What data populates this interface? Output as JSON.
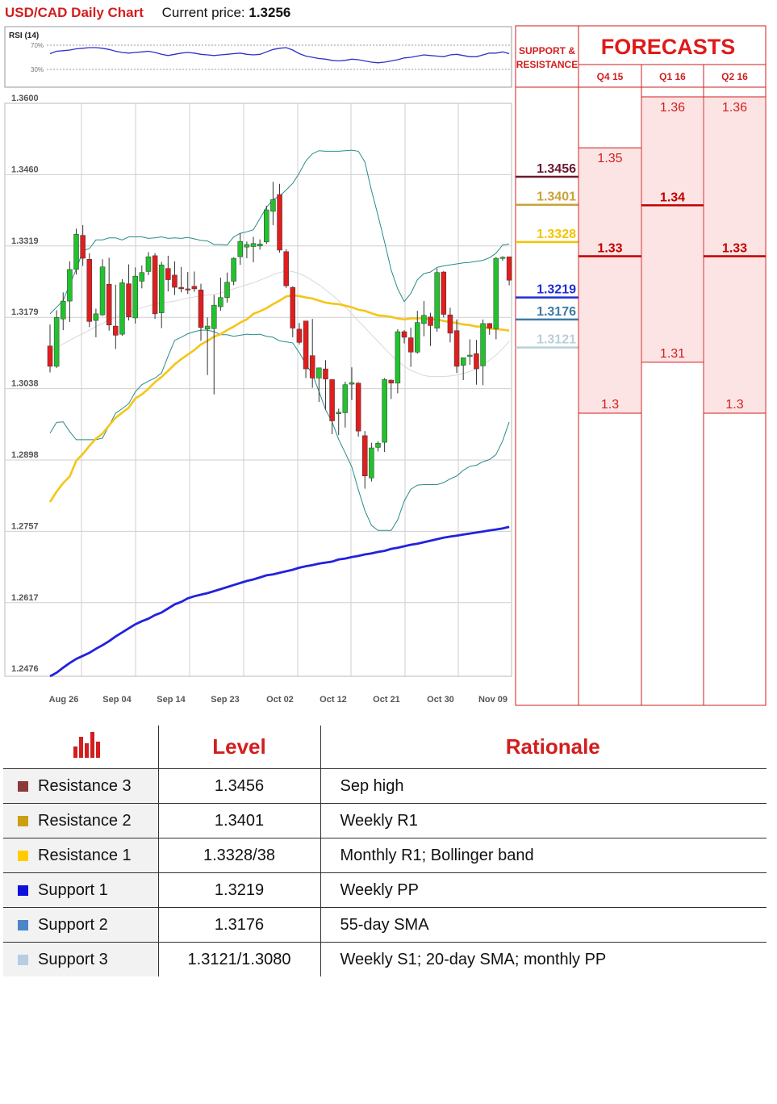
{
  "header": {
    "title": "USD/CAD Daily Chart",
    "price_label": "Current price:",
    "price_value": "1.3256"
  },
  "chart_data": {
    "type": "candlestick",
    "ylim": [
      1.2476,
      1.36
    ],
    "y_ticks": [
      "1.3600",
      "1.3460",
      "1.3319",
      "1.3179",
      "1.3038",
      "1.2898",
      "1.2757",
      "1.2617",
      "1.2476"
    ],
    "x_ticks": [
      "Aug 26",
      "Sep 04",
      "Sep 14",
      "Sep 23",
      "Oct 02",
      "Oct 12",
      "Oct 21",
      "Oct 30",
      "Nov 09"
    ],
    "grid": true,
    "colors": {
      "up": "#22c22e",
      "down": "#e01e1e",
      "sma55": "#f5c518",
      "sma200": "#2222dd",
      "bollinger": "#2a8a8a",
      "sma20": "#d8d8d8"
    },
    "candles": [
      [
        1.3124,
        1.3166,
        1.3072,
        1.3084
      ],
      [
        1.3084,
        1.3194,
        1.3081,
        1.318
      ],
      [
        1.3177,
        1.3229,
        1.3155,
        1.3212
      ],
      [
        1.3212,
        1.329,
        1.3171,
        1.3274
      ],
      [
        1.3274,
        1.3354,
        1.3264,
        1.3343
      ],
      [
        1.3341,
        1.3361,
        1.3281,
        1.3296
      ],
      [
        1.3294,
        1.3306,
        1.3161,
        1.3172
      ],
      [
        1.3174,
        1.3197,
        1.3141,
        1.3187
      ],
      [
        1.3185,
        1.3294,
        1.3183,
        1.3279
      ],
      [
        1.3245,
        1.3297,
        1.3154,
        1.3165
      ],
      [
        1.3163,
        1.3244,
        1.3118,
        1.3145
      ],
      [
        1.3147,
        1.3255,
        1.3144,
        1.3248
      ],
      [
        1.3246,
        1.3284,
        1.3174,
        1.3181
      ],
      [
        1.3179,
        1.3278,
        1.3168,
        1.3261
      ],
      [
        1.3251,
        1.3282,
        1.3237,
        1.3268
      ],
      [
        1.327,
        1.3308,
        1.3263,
        1.3299
      ],
      [
        1.3301,
        1.3306,
        1.3177,
        1.3187
      ],
      [
        1.3189,
        1.3289,
        1.3159,
        1.3283
      ],
      [
        1.3276,
        1.3301,
        1.3231,
        1.3254
      ],
      [
        1.3263,
        1.329,
        1.3224,
        1.3239
      ],
      [
        1.3239,
        1.3279,
        1.3229,
        1.3236
      ],
      [
        1.3236,
        1.3269,
        1.3226,
        1.3234
      ],
      [
        1.3241,
        1.327,
        1.323,
        1.3236
      ],
      [
        1.3234,
        1.3246,
        1.3134,
        1.316
      ],
      [
        1.3157,
        1.318,
        1.3067,
        1.3163
      ],
      [
        1.3158,
        1.3224,
        1.3029,
        1.3204
      ],
      [
        1.3201,
        1.3258,
        1.3193,
        1.3219
      ],
      [
        1.3219,
        1.3268,
        1.3209,
        1.3249
      ],
      [
        1.3251,
        1.3298,
        1.3243,
        1.3296
      ],
      [
        1.3299,
        1.3345,
        1.3283,
        1.3329
      ],
      [
        1.3318,
        1.3329,
        1.3296,
        1.3323
      ],
      [
        1.3319,
        1.3338,
        1.3288,
        1.3325
      ],
      [
        1.332,
        1.3333,
        1.3313,
        1.3324
      ],
      [
        1.3328,
        1.3399,
        1.3324,
        1.3391
      ],
      [
        1.3388,
        1.3446,
        1.3361,
        1.3411
      ],
      [
        1.3421,
        1.3442,
        1.3307,
        1.3312
      ],
      [
        1.3309,
        1.3314,
        1.3238,
        1.3242
      ],
      [
        1.3239,
        1.3241,
        1.3141,
        1.3159
      ],
      [
        1.3157,
        1.3169,
        1.3127,
        1.3131
      ],
      [
        1.3173,
        1.3173,
        1.3061,
        1.3079
      ],
      [
        1.3105,
        1.3177,
        1.3042,
        1.3061
      ],
      [
        1.3061,
        1.3076,
        1.3014,
        1.3081
      ],
      [
        1.3079,
        1.3096,
        1.2999,
        1.3059
      ],
      [
        1.3058,
        1.3059,
        1.2951,
        1.2977
      ],
      [
        1.2991,
        1.3001,
        1.2949,
        1.2994
      ],
      [
        1.2993,
        1.3054,
        1.2964,
        1.3048
      ],
      [
        1.3049,
        1.3082,
        1.3018,
        1.3052
      ],
      [
        1.3051,
        1.3053,
        1.2946,
        1.2957
      ],
      [
        1.2948,
        1.2957,
        1.2844,
        1.2869
      ],
      [
        1.2865,
        1.2934,
        1.2858,
        1.2924
      ],
      [
        1.2925,
        1.2937,
        1.2917,
        1.2933
      ],
      [
        1.2935,
        1.3061,
        1.2916,
        1.3058
      ],
      [
        1.3057,
        1.3058,
        1.302,
        1.3051
      ],
      [
        1.3051,
        1.3157,
        1.3031,
        1.3152
      ],
      [
        1.3152,
        1.3155,
        1.3129,
        1.3141
      ],
      [
        1.314,
        1.316,
        1.3083,
        1.3112
      ],
      [
        1.3112,
        1.3193,
        1.3109,
        1.317
      ],
      [
        1.3168,
        1.3212,
        1.3143,
        1.3184
      ],
      [
        1.3181,
        1.3189,
        1.3124,
        1.3164
      ],
      [
        1.3159,
        1.3276,
        1.3152,
        1.3268
      ],
      [
        1.3269,
        1.3271,
        1.318,
        1.3186
      ],
      [
        1.3185,
        1.3199,
        1.3131,
        1.3149
      ],
      [
        1.3154,
        1.3176,
        1.3071,
        1.3084
      ],
      [
        1.3086,
        1.3099,
        1.3057,
        1.3101
      ],
      [
        1.3105,
        1.3137,
        1.3087,
        1.3106
      ],
      [
        1.3109,
        1.3136,
        1.3048,
        1.3079
      ],
      [
        1.3085,
        1.3176,
        1.3047,
        1.3168
      ],
      [
        1.3168,
        1.3169,
        1.3146,
        1.3159
      ],
      [
        1.3158,
        1.3298,
        1.3137,
        1.3296
      ],
      [
        1.3296,
        1.33,
        1.3291,
        1.3298
      ],
      [
        1.3299,
        1.3295,
        1.3243,
        1.3253
      ]
    ],
    "sma55": [
      1.2818,
      1.2838,
      1.2855,
      1.2868,
      1.2899,
      1.2912,
      1.2928,
      1.2942,
      1.2952,
      1.2968,
      1.2983,
      1.2993,
      1.3003,
      1.3021,
      1.3029,
      1.304,
      1.3053,
      1.3063,
      1.3075,
      1.3088,
      1.3098,
      1.3107,
      1.3116,
      1.3127,
      1.3134,
      1.3142,
      1.3147,
      1.3155,
      1.3162,
      1.317,
      1.3176,
      1.3187,
      1.3192,
      1.3198,
      1.3206,
      1.3213,
      1.3221,
      1.3223,
      1.3222,
      1.3219,
      1.3217,
      1.3213,
      1.3209,
      1.3207,
      1.3206,
      1.3203,
      1.32,
      1.3195,
      1.3193,
      1.3188,
      1.3184,
      1.3183,
      1.3181,
      1.3178,
      1.3176,
      1.3178,
      1.3178,
      1.3178,
      1.3176,
      1.3176,
      1.3173,
      1.3171,
      1.3169,
      1.3166,
      1.3165,
      1.3162,
      1.3162,
      1.3158,
      1.3157,
      1.3156,
      1.3154
    ],
    "sma200": [
      1.2476,
      1.2483,
      1.2493,
      1.2502,
      1.251,
      1.2516,
      1.2522,
      1.253,
      1.2537,
      1.2545,
      1.2554,
      1.2562,
      1.257,
      1.2578,
      1.2584,
      1.2589,
      1.2596,
      1.2601,
      1.2609,
      1.2617,
      1.2622,
      1.2629,
      1.2633,
      1.2636,
      1.2639,
      1.2643,
      1.2647,
      1.2651,
      1.2655,
      1.2659,
      1.2663,
      1.2666,
      1.267,
      1.2674,
      1.2676,
      1.2679,
      1.2682,
      1.2685,
      1.2689,
      1.2692,
      1.2694,
      1.2697,
      1.2699,
      1.2701,
      1.2705,
      1.2707,
      1.271,
      1.2712,
      1.2715,
      1.2717,
      1.272,
      1.2722,
      1.2726,
      1.2728,
      1.2731,
      1.2734,
      1.2736,
      1.2739,
      1.2742,
      1.2745,
      1.2748,
      1.275,
      1.2752,
      1.2754,
      1.2756,
      1.2758,
      1.276,
      1.2762,
      1.2764,
      1.2766,
      1.2769
    ],
    "bb_upper": [
      1.3187,
      1.32,
      1.3213,
      1.3245,
      1.3274,
      1.3311,
      1.3315,
      1.3332,
      1.3332,
      1.3336,
      1.3336,
      1.3332,
      1.3338,
      1.3338,
      1.3338,
      1.3335,
      1.3336,
      1.3338,
      1.3335,
      1.3336,
      1.3335,
      1.3337,
      1.3334,
      1.3331,
      1.333,
      1.3323,
      1.3323,
      1.3322,
      1.3338,
      1.3345,
      1.3348,
      1.3352,
      1.3374,
      1.3396,
      1.3411,
      1.3418,
      1.343,
      1.3443,
      1.3463,
      1.3487,
      1.3501,
      1.3507,
      1.3506,
      1.3506,
      1.3506,
      1.3507,
      1.3508,
      1.3506,
      1.3485,
      1.3429,
      1.338,
      1.3328,
      1.3273,
      1.3236,
      1.3211,
      1.3227,
      1.3254,
      1.3266,
      1.3269,
      1.3278,
      1.3281,
      1.3283,
      1.3285,
      1.3287,
      1.3288,
      1.329,
      1.3292,
      1.3297,
      1.3306,
      1.3322,
      1.3324
    ],
    "bb_lower": [
      1.2953,
      1.2974,
      1.2975,
      1.2956,
      1.294,
      1.294,
      1.294,
      1.294,
      1.2943,
      1.2968,
      1.2992,
      1.3001,
      1.3011,
      1.3034,
      1.3048,
      1.3055,
      1.3061,
      1.3071,
      1.3104,
      1.3135,
      1.3141,
      1.3148,
      1.3152,
      1.3155,
      1.3155,
      1.3152,
      1.3146,
      1.3146,
      1.3143,
      1.3145,
      1.3147,
      1.3146,
      1.3147,
      1.3143,
      1.3141,
      1.3134,
      1.3132,
      1.313,
      1.3111,
      1.3088,
      1.3069,
      1.3035,
      1.2999,
      1.2975,
      1.2941,
      1.2914,
      1.2887,
      1.2842,
      1.2801,
      1.2772,
      1.2762,
      1.2762,
      1.2762,
      1.2783,
      1.282,
      1.2843,
      1.2851,
      1.2852,
      1.2852,
      1.2852,
      1.2856,
      1.2863,
      1.2869,
      1.288,
      1.2888,
      1.289,
      1.2897,
      1.2901,
      1.2911,
      1.2938,
      1.2975
    ],
    "sma20": [
      1.3111,
      1.3121,
      1.3128,
      1.3135,
      1.3142,
      1.3148,
      1.3155,
      1.3162,
      1.3168,
      1.3175,
      1.318,
      1.3186,
      1.319,
      1.3195,
      1.3199,
      1.3203,
      1.3206,
      1.3208,
      1.321,
      1.3212,
      1.3215,
      1.3218,
      1.322,
      1.3222,
      1.3224,
      1.3225,
      1.3228,
      1.3232,
      1.3236,
      1.324,
      1.3244,
      1.3248,
      1.3253,
      1.3258,
      1.3264,
      1.3268,
      1.3271,
      1.327,
      1.3266,
      1.326,
      1.3252,
      1.3244,
      1.3234,
      1.3224,
      1.3213,
      1.32,
      1.3187,
      1.3173,
      1.316,
      1.3146,
      1.3133,
      1.3119,
      1.3106,
      1.3094,
      1.3084,
      1.3076,
      1.3071,
      1.3066,
      1.3064,
      1.3064,
      1.3064,
      1.3065,
      1.3067,
      1.307,
      1.3074,
      1.308,
      1.3087,
      1.3096,
      1.3106,
      1.3119,
      1.3133
    ]
  },
  "rsi": {
    "label": "RSI (14)",
    "levels": [
      "70%",
      "30%"
    ],
    "color": "#3030c8",
    "values": [
      56,
      60,
      61,
      62,
      64,
      65,
      66,
      66,
      65,
      63,
      60,
      58,
      57,
      58,
      59,
      60,
      58,
      55,
      53,
      55,
      57,
      58,
      57,
      55,
      54,
      53,
      54,
      55,
      56,
      57,
      55,
      54,
      55,
      59,
      63,
      65,
      66,
      62,
      56,
      52,
      50,
      48,
      47,
      45,
      44,
      45,
      47,
      46,
      44,
      42,
      41,
      42,
      44,
      46,
      49,
      50,
      52,
      54,
      53,
      52,
      51,
      54,
      55,
      53,
      51,
      51,
      54,
      57,
      57,
      59,
      56
    ]
  },
  "sr_panel": {
    "header": "SUPPORT & RESISTANCE",
    "levels": [
      {
        "value": "1.3456",
        "color": "#6b1a2e"
      },
      {
        "value": "1.3401",
        "color": "#c9a23a"
      },
      {
        "value": "1.3328",
        "color": "#f4c400"
      },
      {
        "value": "1.3219",
        "color": "#1f2ed6"
      },
      {
        "value": "1.3176",
        "color": "#3e7aa6"
      },
      {
        "value": "1.3121",
        "color": "#b7d1d8"
      }
    ]
  },
  "forecasts": {
    "title": "FORECASTS",
    "columns": [
      {
        "label": "Q4 15",
        "high": "1.35",
        "mid": "1.33",
        "low": "1.3"
      },
      {
        "label": "Q1 16",
        "high": "1.36",
        "mid": "1.34",
        "low": "1.31"
      },
      {
        "label": "Q2 16",
        "high": "1.36",
        "mid": "1.33",
        "low": "1.3"
      }
    ]
  },
  "levels_table": {
    "headers": [
      "Level",
      "Rationale"
    ],
    "rows": [
      {
        "name": "Resistance 3",
        "level": "1.3456",
        "rationale": "Sep high",
        "color": "#8b3a3a"
      },
      {
        "name": "Resistance 2",
        "level": "1.3401",
        "rationale": "Weekly R1",
        "color": "#c9a010"
      },
      {
        "name": "Resistance 1",
        "level": "1.3328/38",
        "rationale": "Monthly R1; Bollinger band",
        "color": "#ffcc00"
      },
      {
        "name": "Support 1",
        "level": "1.3219",
        "rationale": "Weekly PP",
        "color": "#1010dd"
      },
      {
        "name": "Support 2",
        "level": "1.3176",
        "rationale": "55-day SMA",
        "color": "#4a86c8"
      },
      {
        "name": "Support 3",
        "level": "1.3121/1.3080",
        "rationale": "Weekly S1; 20-day SMA; monthly PP",
        "color": "#b8cce4"
      }
    ]
  }
}
